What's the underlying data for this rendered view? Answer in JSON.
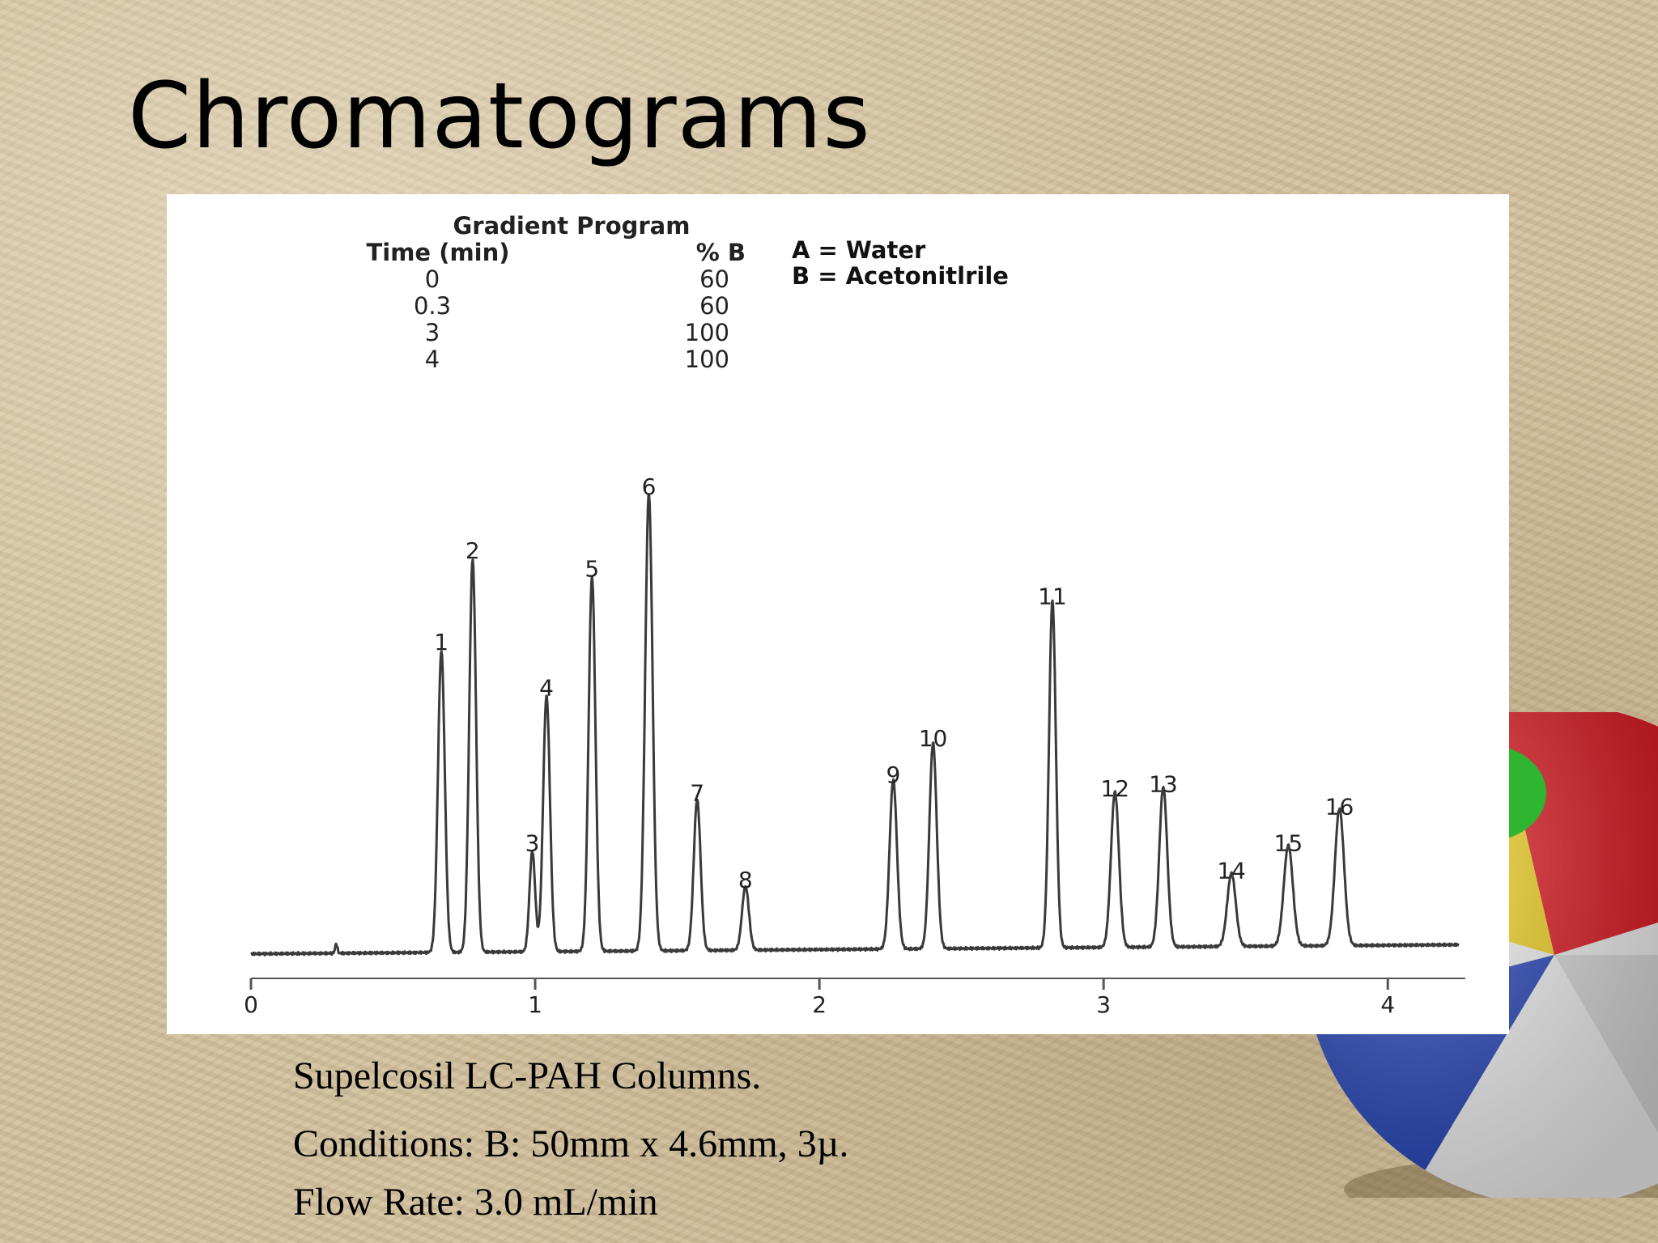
{
  "slide": {
    "title": "Chromatograms",
    "caption_lines": [
      "Supelcosil LC-PAH Columns.",
      "Conditions: B: 50mm x 4.6mm, 3µ.",
      "Flow Rate: 3.0 mL/min"
    ]
  },
  "chart_data": {
    "type": "line",
    "title": "",
    "xlabel": "",
    "ylabel": "",
    "xlim": [
      0,
      4.25
    ],
    "x_ticks": [
      0,
      1,
      2,
      3,
      4
    ],
    "grid": false,
    "gradient_program": {
      "title": "Gradient Program",
      "headers": [
        "Time (min)",
        "% B"
      ],
      "rows": [
        [
          "0",
          "60"
        ],
        [
          "0.3",
          "60"
        ],
        [
          "3",
          "100"
        ],
        [
          "4",
          "100"
        ]
      ]
    },
    "solvents": [
      "A = Water",
      "B = Acetonitlrile"
    ],
    "baseline": {
      "start": 0.02,
      "end": 0.04
    },
    "injection_mark": {
      "x": 0.3,
      "height": 0.02
    },
    "peaks": [
      {
        "label": "1",
        "rt": 0.67,
        "height": 0.66,
        "width": 0.012
      },
      {
        "label": "2",
        "rt": 0.78,
        "height": 0.86,
        "width": 0.012
      },
      {
        "label": "3",
        "rt": 0.99,
        "height": 0.22,
        "width": 0.01
      },
      {
        "label": "4",
        "rt": 1.04,
        "height": 0.56,
        "width": 0.012
      },
      {
        "label": "5",
        "rt": 1.2,
        "height": 0.82,
        "width": 0.012
      },
      {
        "label": "6",
        "rt": 1.4,
        "height": 1.0,
        "width": 0.013
      },
      {
        "label": "7",
        "rt": 1.57,
        "height": 0.33,
        "width": 0.012
      },
      {
        "label": "8",
        "rt": 1.74,
        "height": 0.14,
        "width": 0.012
      },
      {
        "label": "9",
        "rt": 2.26,
        "height": 0.37,
        "width": 0.013
      },
      {
        "label": "10",
        "rt": 2.4,
        "height": 0.45,
        "width": 0.013
      },
      {
        "label": "11",
        "rt": 2.82,
        "height": 0.76,
        "width": 0.012
      },
      {
        "label": "12",
        "rt": 3.04,
        "height": 0.34,
        "width": 0.014
      },
      {
        "label": "13",
        "rt": 3.21,
        "height": 0.35,
        "width": 0.014
      },
      {
        "label": "14",
        "rt": 3.45,
        "height": 0.16,
        "width": 0.015
      },
      {
        "label": "15",
        "rt": 3.65,
        "height": 0.22,
        "width": 0.016
      },
      {
        "label": "16",
        "rt": 3.83,
        "height": 0.3,
        "width": 0.016
      }
    ]
  },
  "colors": {
    "trace": "#3a3a3a",
    "panel": "#ffffff",
    "sand": "#d2c09c",
    "ball_red": "#e0141c",
    "ball_green": "#2fb52f",
    "ball_yellow": "#f3d21a",
    "ball_blue": "#1f3fb8",
    "ball_white": "#f4f4f4"
  }
}
